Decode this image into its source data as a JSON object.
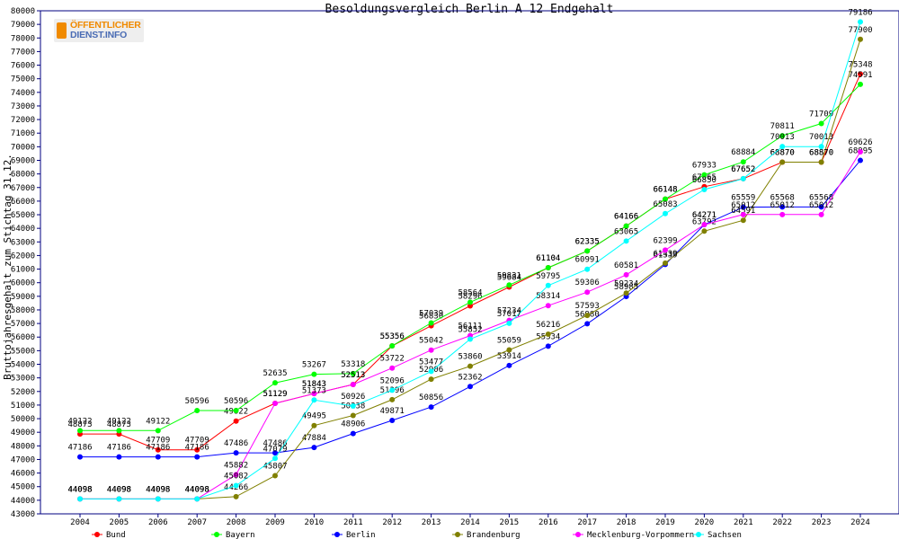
{
  "logo": {
    "line1": "ÖFFENTLICHER",
    "line2": "DIENST.INFO"
  },
  "chart_data": {
    "type": "line",
    "title": "Besoldungsvergleich Berlin A 12 Endgehalt",
    "xlabel": "",
    "ylabel": "Bruttojahresgehalt zum Stichtag 31.12.",
    "x": [
      2004,
      2005,
      2006,
      2007,
      2008,
      2009,
      2010,
      2011,
      2012,
      2013,
      2014,
      2015,
      2016,
      2017,
      2018,
      2019,
      2020,
      2021,
      2022,
      2023,
      2024
    ],
    "ylim": [
      43000,
      80000
    ],
    "ytick_step": 1000,
    "grid": false,
    "legend_position": "bottom",
    "series": [
      {
        "name": "Bund",
        "color": "#ff0000",
        "values": [
          48873,
          48873,
          47709,
          47709,
          49822,
          51129,
          51843,
          52513,
          55356,
          56830,
          58296,
          59684,
          61104,
          62335,
          64166,
          66148,
          67065,
          67652,
          68870,
          68870,
          75348
        ]
      },
      {
        "name": "Bayern",
        "color": "#00ff00",
        "values": [
          49122,
          49122,
          49122,
          50596,
          50596,
          52635,
          53267,
          53318,
          55356,
          57039,
          58564,
          59831,
          61104,
          62335,
          64166,
          66148,
          67933,
          68884,
          70811,
          71709,
          74591
        ]
      },
      {
        "name": "Berlin",
        "color": "#0000ff",
        "values": [
          47186,
          47186,
          47186,
          47186,
          47486,
          47486,
          47884,
          48906,
          49871,
          50856,
          52362,
          53914,
          55334,
          56980,
          58985,
          61339,
          64271,
          65559,
          65568,
          65568,
          68995
        ]
      },
      {
        "name": "Brandenburg",
        "color": "#808000",
        "values": [
          44098,
          44098,
          44098,
          44098,
          44266,
          45807,
          49495,
          50238,
          51396,
          52906,
          53860,
          55059,
          56216,
          57593,
          59234,
          61439,
          63792,
          64591,
          68870,
          68870,
          77900
        ]
      },
      {
        "name": "Mecklenburg-Vorpommern",
        "color": "#ff00ff",
        "values": [
          44098,
          44098,
          44098,
          44098,
          45882,
          51129,
          51843,
          52513,
          53722,
          55042,
          56111,
          57234,
          58314,
          59306,
          60581,
          62399,
          64271,
          65012,
          65012,
          65012,
          69626
        ]
      },
      {
        "name": "Sachsen",
        "color": "#00ffff",
        "values": [
          44098,
          44098,
          44098,
          44098,
          45082,
          47079,
          51373,
          50926,
          52096,
          53477,
          55852,
          57017,
          59795,
          60991,
          63065,
          65083,
          66850,
          67652,
          70013,
          70013,
          79186
        ]
      }
    ]
  }
}
